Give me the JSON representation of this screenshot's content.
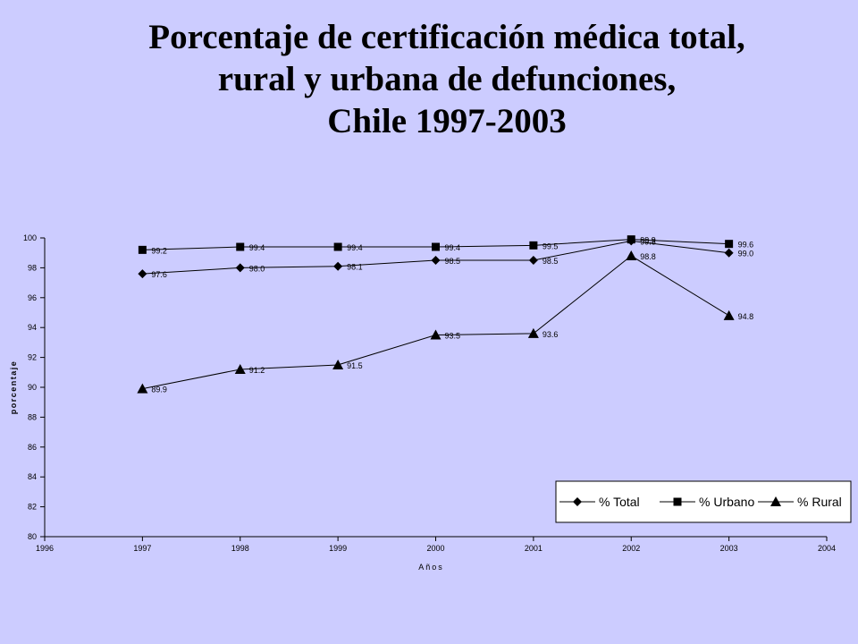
{
  "title_lines": [
    "Porcentaje de certificación médica total,",
    "rural y urbana de defunciones,",
    "Chile 1997-2003"
  ],
  "chart_data": {
    "type": "line",
    "title": "Porcentaje de certificación médica total, rural y urbana de defunciones, Chile 1997-2003",
    "xlabel": "Años",
    "ylabel": "porcentaje",
    "xlim": [
      1996,
      2004
    ],
    "ylim": [
      80,
      100
    ],
    "x_ticks": [
      1996,
      1997,
      1998,
      1999,
      2000,
      2001,
      2002,
      2003,
      2004
    ],
    "y_ticks": [
      80,
      82,
      84,
      86,
      88,
      90,
      92,
      94,
      96,
      98,
      100
    ],
    "grid": false,
    "legend_position": "bottom-right",
    "x": [
      1997,
      1998,
      1999,
      2000,
      2001,
      2002,
      2003
    ],
    "series": [
      {
        "name": "% Total",
        "marker": "diamond",
        "values": [
          97.6,
          98.0,
          98.1,
          98.5,
          98.5,
          99.8,
          99.0
        ],
        "labels": [
          "97.6",
          "98.0",
          "98.1",
          "98.5",
          "98.5",
          "99.8",
          "99.0"
        ]
      },
      {
        "name": "% Urbano",
        "marker": "square",
        "values": [
          99.2,
          99.4,
          99.4,
          99.4,
          99.5,
          99.9,
          99.6
        ],
        "labels": [
          "99.2",
          "99.4",
          "99.4",
          "99.4",
          "99.5",
          "99.9",
          "99.6"
        ]
      },
      {
        "name": "% Rural",
        "marker": "triangle",
        "values": [
          89.9,
          91.2,
          91.5,
          93.5,
          93.6,
          98.8,
          94.8
        ],
        "labels": [
          "89.9",
          "91.2",
          "91.5",
          "93.5",
          "93.6",
          "98.8",
          "94.8"
        ]
      }
    ],
    "colors": {
      "background": "#ccccff",
      "plot_area": "#ccccff",
      "lines": "#000000",
      "legend_fill": "#ffffff"
    }
  }
}
